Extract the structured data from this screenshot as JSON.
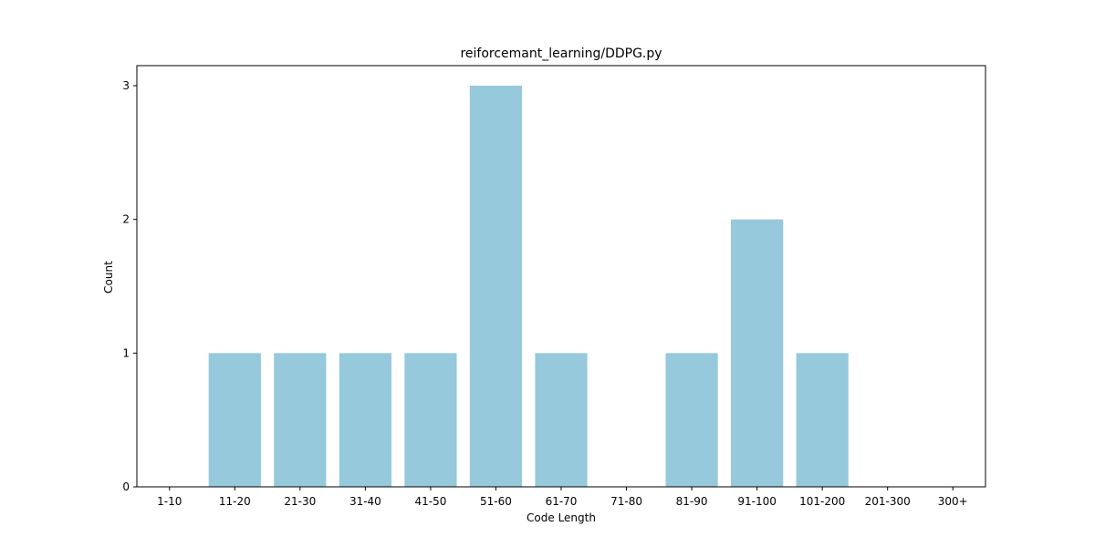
{
  "chart_data": {
    "type": "bar",
    "title": "reiforcemant_learning/DDPG.py",
    "xlabel": "Code Length",
    "ylabel": "Count",
    "categories": [
      "1-10",
      "11-20",
      "21-30",
      "31-40",
      "41-50",
      "51-60",
      "61-70",
      "71-80",
      "81-90",
      "91-100",
      "101-200",
      "201-300",
      "300+"
    ],
    "values": [
      0,
      1,
      1,
      1,
      1,
      3,
      1,
      0,
      1,
      2,
      1,
      0,
      0
    ],
    "ylim": [
      0,
      3.15
    ],
    "yticks": [
      0,
      1,
      2,
      3
    ],
    "bar_color": "#96c9dc",
    "grid": false,
    "legend": "none"
  }
}
